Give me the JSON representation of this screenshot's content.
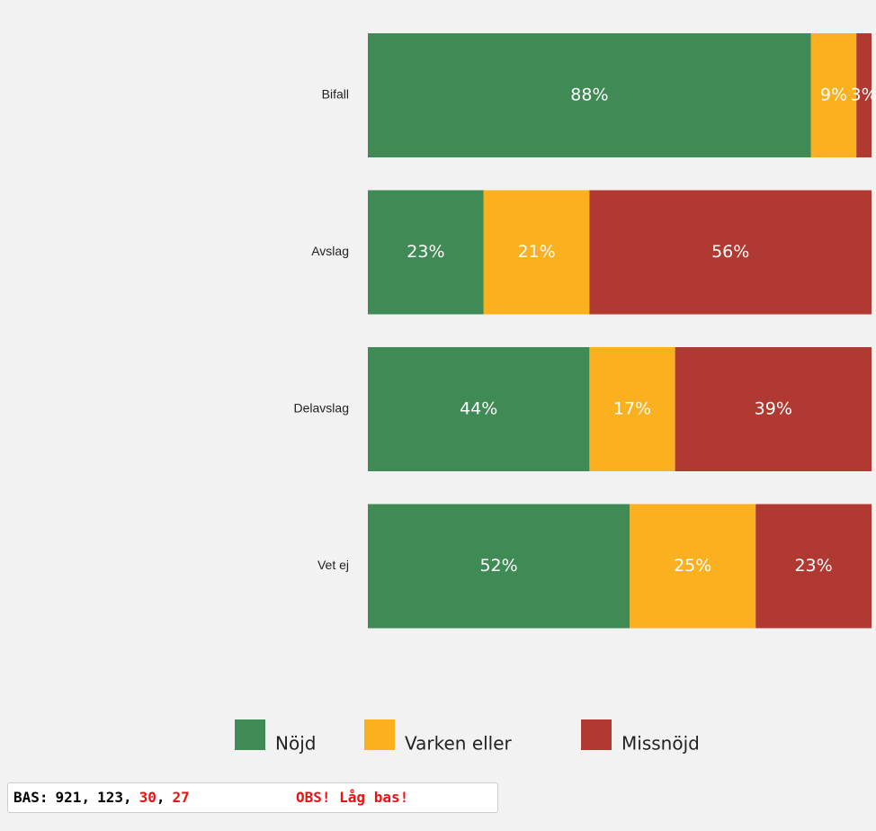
{
  "chart_data": {
    "type": "stacked_barh",
    "categories": [
      "Bifall",
      "Avslag",
      "Delavslag",
      "Vet ej"
    ],
    "series": [
      {
        "name": "Nöjd",
        "color": "#3f8a55",
        "values": [
          88,
          23,
          44,
          52
        ],
        "value_labels": [
          "88%",
          "23%",
          "44%",
          "52%"
        ]
      },
      {
        "name": "Varken eller",
        "color": "#fbb01f",
        "values": [
          9,
          21,
          17,
          25
        ],
        "value_labels": [
          "9%",
          "21%",
          "17%",
          "25%"
        ]
      },
      {
        "name": "Missnöjd",
        "color": "#b03a32",
        "values": [
          3,
          56,
          39,
          23
        ],
        "value_labels": [
          "3%",
          "56%",
          "39%",
          "23%"
        ]
      }
    ],
    "xlim": [
      0,
      100
    ]
  },
  "base": {
    "label": "BAS:",
    "values": [
      921,
      123,
      30,
      27
    ],
    "colors": [
      "#000000",
      "#000000",
      "#ee1111",
      "#ee1111"
    ],
    "warning": "OBS! Låg bas!"
  }
}
